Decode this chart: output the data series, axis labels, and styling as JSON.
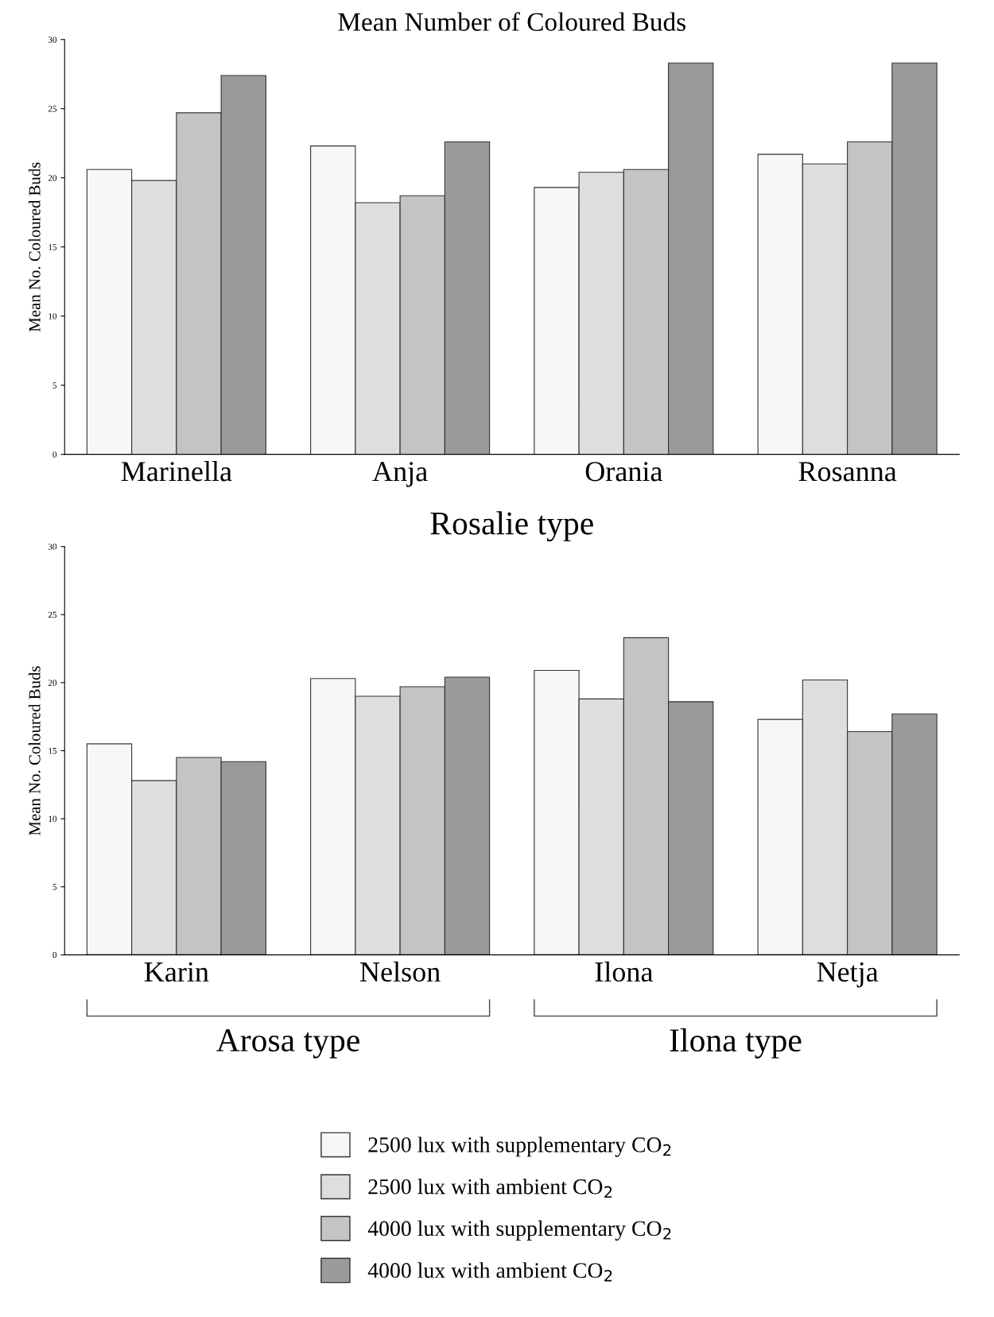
{
  "chart_data": [
    {
      "type": "bar",
      "title": "Mean Number of Coloured Buds",
      "ylabel": "Mean No. Coloured Buds",
      "xlabel": "Rosalie type",
      "categories": [
        "Marinella",
        "Anja",
        "Orania",
        "Rosanna"
      ],
      "ylim": [
        0,
        30
      ],
      "yticks": [
        0,
        5,
        10,
        15,
        20,
        25,
        30
      ],
      "grid": false,
      "legend": false,
      "series": [
        {
          "color": "#f7f7f7",
          "values": [
            20.6,
            22.3,
            19.3,
            21.7
          ]
        },
        {
          "color": "#dedede",
          "values": [
            19.8,
            18.2,
            20.4,
            21.0
          ]
        },
        {
          "color": "#c4c4c4",
          "values": [
            24.7,
            18.7,
            20.6,
            22.6
          ]
        },
        {
          "color": "#9a9a9a",
          "values": [
            27.4,
            22.6,
            28.3,
            28.3
          ]
        }
      ]
    },
    {
      "type": "bar",
      "ylabel": "Mean No. Coloured Buds",
      "categories": [
        "Karin",
        "Nelson",
        "Ilona",
        "Netja"
      ],
      "annotations": [
        "Arosa type",
        "Ilona type"
      ],
      "ylim": [
        0,
        30
      ],
      "yticks": [
        0,
        5,
        10,
        15,
        20,
        25,
        30
      ],
      "grid": false,
      "legend": "bottom",
      "series": [
        {
          "name": "2500 lux with supplementary CO$_{2}$",
          "color": "#f7f7f7",
          "values": [
            15.5,
            20.3,
            20.9,
            17.3
          ]
        },
        {
          "name": "2500 lux with ambient CO$_{2}$",
          "color": "#dedede",
          "values": [
            12.8,
            19.0,
            18.8,
            20.2
          ]
        },
        {
          "name": "4000 lux with supplementary CO$_{2}$",
          "color": "#c4c4c4",
          "values": [
            14.5,
            19.7,
            23.3,
            16.4
          ]
        },
        {
          "name": "4000 lux with ambient CO$_{2}$",
          "color": "#9a9a9a",
          "values": [
            14.2,
            20.4,
            18.6,
            17.7
          ]
        }
      ]
    }
  ]
}
